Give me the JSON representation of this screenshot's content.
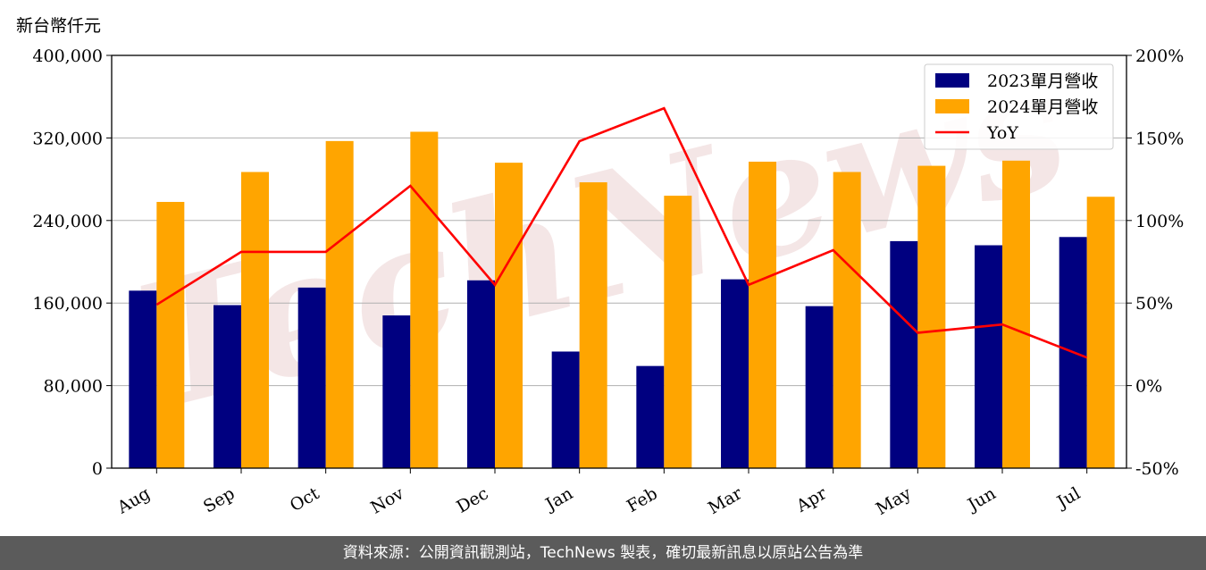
{
  "chart_data": {
    "type": "bar",
    "ylabel": "新台幣仟元",
    "categories": [
      "Aug",
      "Sep",
      "Oct",
      "Nov",
      "Dec",
      "Jan",
      "Feb",
      "Mar",
      "Apr",
      "May",
      "Jun",
      "Jul"
    ],
    "series": [
      {
        "name": "2023單月營收",
        "type": "bar",
        "axis": "left",
        "color": "#000080",
        "values": [
          172000,
          158000,
          175000,
          148000,
          182000,
          113000,
          99000,
          183000,
          157000,
          220000,
          216000,
          224000
        ]
      },
      {
        "name": "2024單月營收",
        "type": "bar",
        "axis": "left",
        "color": "#ffa500",
        "values": [
          258000,
          287000,
          317000,
          326000,
          296000,
          277000,
          264000,
          297000,
          287000,
          293000,
          298000,
          263000
        ]
      },
      {
        "name": "YoY",
        "type": "line",
        "axis": "right",
        "color": "#ff0000",
        "values": [
          49,
          81,
          81,
          121,
          61,
          148,
          168,
          61,
          82,
          32,
          37,
          17
        ]
      }
    ],
    "ylim": [
      0,
      400000
    ],
    "yticks": [
      "0",
      "80,000",
      "160,000",
      "240,000",
      "320,000",
      "400,000"
    ],
    "ylim_right": [
      -50,
      200
    ],
    "yticks_right": [
      "-50%",
      "0%",
      "50%",
      "100%",
      "150%",
      "200%"
    ],
    "grid": "horizontal",
    "legend": "top-right"
  },
  "watermark": "TechNews",
  "footer": "資料來源：公開資訊觀測站，TechNews 製表，確切最新訊息以原站公告為準"
}
